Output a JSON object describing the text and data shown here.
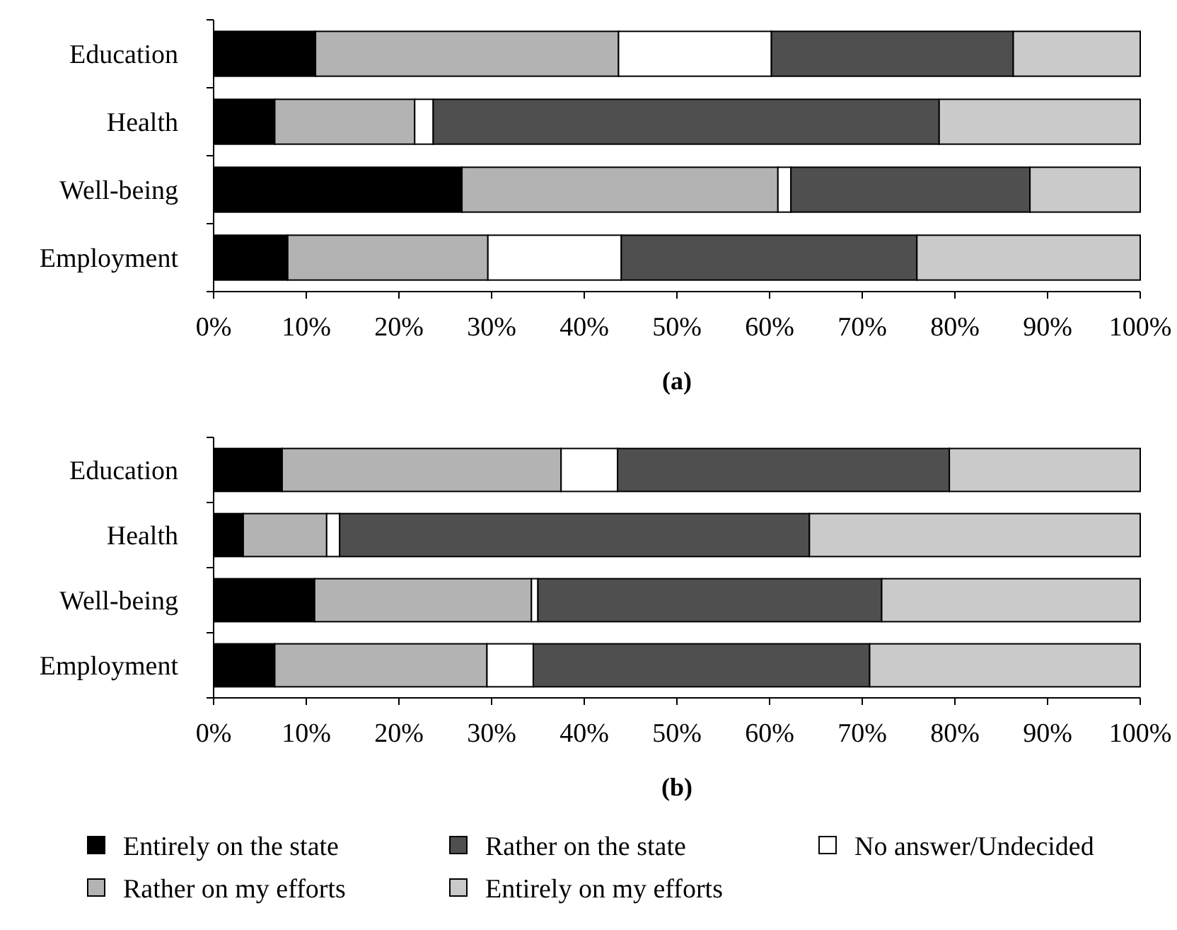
{
  "chart_data": [
    {
      "type": "bar",
      "title": "(a)",
      "orientation": "horizontal",
      "stacked": true,
      "categories": [
        "Education",
        "Health",
        "Well-being",
        "Employment"
      ],
      "xlim": [
        0,
        100
      ],
      "xticks": [
        {
          "value": 0,
          "label": "0%"
        },
        {
          "value": 10,
          "label": "10%"
        },
        {
          "value": 20,
          "label": "20%"
        },
        {
          "value": 30,
          "label": "30%"
        },
        {
          "value": 40,
          "label": "40%"
        },
        {
          "value": 50,
          "label": "50%"
        },
        {
          "value": 60,
          "label": "60%"
        },
        {
          "value": 70,
          "label": "70%"
        },
        {
          "value": 80,
          "label": "80%"
        },
        {
          "value": 90,
          "label": "90%"
        },
        {
          "value": 100,
          "label": "100%"
        }
      ],
      "series": [
        {
          "color": "#000000",
          "values": [
            11.0,
            6.6,
            26.8,
            8.0
          ]
        },
        {
          "color": "#b3b3b3",
          "values": [
            32.7,
            15.1,
            34.1,
            21.6
          ]
        },
        {
          "color": "#ffffff",
          "values": [
            16.5,
            2.0,
            1.4,
            14.4
          ]
        },
        {
          "color": "#4f4f4f",
          "values": [
            26.1,
            54.6,
            25.8,
            31.9
          ]
        },
        {
          "color": "#cacaca",
          "values": [
            13.7,
            21.7,
            11.9,
            24.1
          ]
        }
      ]
    },
    {
      "type": "bar",
      "title": "(b)",
      "orientation": "horizontal",
      "stacked": true,
      "legend": "bottom",
      "categories": [
        "Education",
        "Health",
        "Well-being",
        "Employment"
      ],
      "xlim": [
        0,
        100
      ],
      "xticks": [
        {
          "value": 0,
          "label": "0%"
        },
        {
          "value": 10,
          "label": "10%"
        },
        {
          "value": 20,
          "label": "20%"
        },
        {
          "value": 30,
          "label": "30%"
        },
        {
          "value": 40,
          "label": "40%"
        },
        {
          "value": 50,
          "label": "50%"
        },
        {
          "value": 60,
          "label": "60%"
        },
        {
          "value": 70,
          "label": "70%"
        },
        {
          "value": 80,
          "label": "80%"
        },
        {
          "value": 90,
          "label": "90%"
        },
        {
          "value": 100,
          "label": "100%"
        }
      ],
      "series": [
        {
          "name": "Entirely on the state",
          "color": "#000000",
          "values": [
            7.4,
            3.2,
            10.9,
            6.6
          ]
        },
        {
          "name": "Rather on my efforts",
          "color": "#b3b3b3",
          "values": [
            30.1,
            9.0,
            23.4,
            22.9
          ]
        },
        {
          "name": "No answer/Undecided",
          "color": "#ffffff",
          "values": [
            6.1,
            1.4,
            0.7,
            5.0
          ]
        },
        {
          "name": "Rather on the state",
          "color": "#4f4f4f",
          "values": [
            35.8,
            50.7,
            37.1,
            36.3
          ]
        },
        {
          "name": "Entirely on my efforts",
          "color": "#cacaca",
          "values": [
            20.6,
            35.7,
            27.9,
            29.2
          ]
        }
      ]
    }
  ]
}
